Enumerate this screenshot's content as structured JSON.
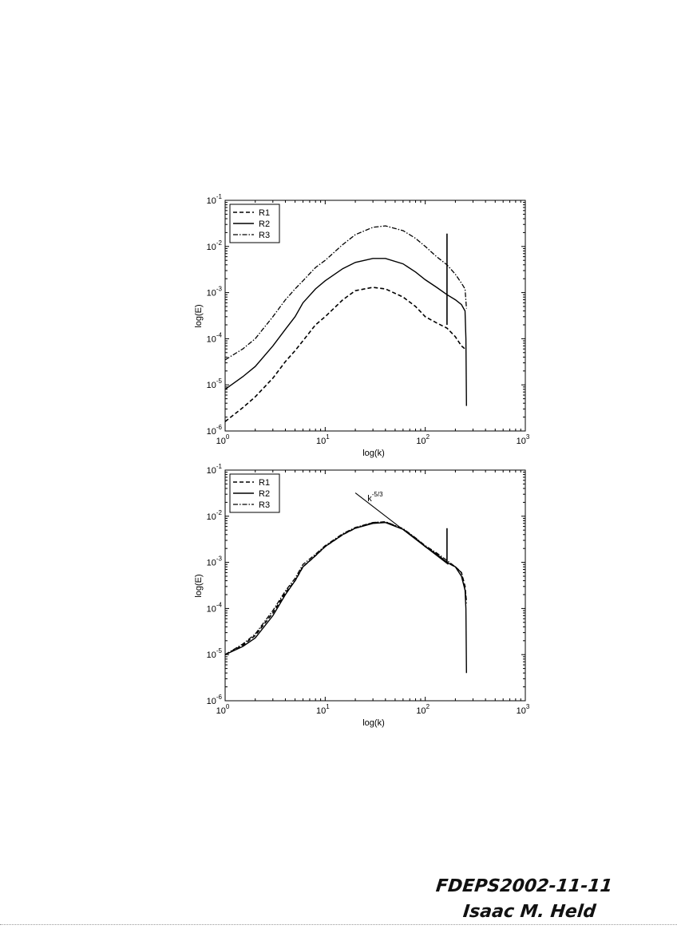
{
  "chart_data": [
    {
      "type": "line",
      "title": "",
      "xlabel": "log(k)",
      "ylabel": "log(E)",
      "xscale": "log",
      "yscale": "log",
      "xlim": [
        1,
        1000
      ],
      "ylim": [
        1e-06,
        0.1
      ],
      "xticks": [
        {
          "v": 1,
          "b": "10",
          "e": "0"
        },
        {
          "v": 10,
          "b": "10",
          "e": "1"
        },
        {
          "v": 100,
          "b": "10",
          "e": "2"
        },
        {
          "v": 1000,
          "b": "10",
          "e": "3"
        }
      ],
      "yticks": [
        {
          "v": 1e-06,
          "b": "10",
          "e": "-6"
        },
        {
          "v": 1e-05,
          "b": "10",
          "e": "-5"
        },
        {
          "v": 0.0001,
          "b": "10",
          "e": "-4"
        },
        {
          "v": 0.001,
          "b": "10",
          "e": "-3"
        },
        {
          "v": 0.01,
          "b": "10",
          "e": "-2"
        },
        {
          "v": 0.1,
          "b": "10",
          "e": "-1"
        }
      ],
      "legend_position": "top-left",
      "grid": false,
      "series": [
        {
          "name": "R1",
          "style": "dashed",
          "x": [
            1,
            1.5,
            2,
            3,
            4,
            5,
            6,
            8,
            10,
            15,
            20,
            30,
            40,
            60,
            80,
            100,
            130,
            165,
            200,
            230,
            250
          ],
          "y": [
            1.6e-06,
            3.2e-06,
            5.5e-06,
            1.4e-05,
            3.2e-05,
            5.5e-05,
            9e-05,
            0.0002,
            0.0003,
            0.0007,
            0.0011,
            0.0013,
            0.0012,
            0.0008,
            0.0005,
            0.0003,
            0.00022,
            0.00017,
            0.00011,
            7e-05,
            6e-05
          ]
        },
        {
          "name": "R2",
          "style": "solid",
          "x": [
            1,
            1.5,
            2,
            3,
            4,
            5,
            6,
            8,
            10,
            15,
            20,
            30,
            40,
            60,
            80,
            100,
            130,
            165,
            200,
            230,
            250,
            255,
            258
          ],
          "y": [
            8e-06,
            1.5e-05,
            2.5e-05,
            7e-05,
            0.00016,
            0.0003,
            0.0006,
            0.0012,
            0.0018,
            0.0033,
            0.0045,
            0.0055,
            0.0055,
            0.0042,
            0.0028,
            0.0019,
            0.0013,
            0.0009,
            0.0007,
            0.00055,
            0.0004,
            0.0001,
            3.5e-06
          ]
        },
        {
          "name": "R3",
          "style": "dashdot",
          "x": [
            1,
            1.5,
            2,
            3,
            4,
            5,
            6,
            8,
            10,
            15,
            20,
            30,
            40,
            60,
            80,
            100,
            130,
            165,
            200,
            230,
            250,
            258
          ],
          "y": [
            3.5e-05,
            6e-05,
            0.0001,
            0.0003,
            0.0007,
            0.0012,
            0.0018,
            0.0035,
            0.005,
            0.011,
            0.018,
            0.026,
            0.028,
            0.022,
            0.015,
            0.01,
            0.006,
            0.004,
            0.0025,
            0.0016,
            0.0012,
            0.00045
          ]
        },
        {
          "name": "",
          "style": "solid-spike",
          "x": [
            165,
            165
          ],
          "y": [
            0.019,
            0.0002
          ]
        }
      ],
      "annotations": []
    },
    {
      "type": "line",
      "title": "",
      "xlabel": "log(k)",
      "ylabel": "log(E)",
      "xscale": "log",
      "yscale": "log",
      "xlim": [
        1,
        1000
      ],
      "ylim": [
        1e-06,
        0.1
      ],
      "xticks": [
        {
          "v": 1,
          "b": "10",
          "e": "0"
        },
        {
          "v": 10,
          "b": "10",
          "e": "1"
        },
        {
          "v": 100,
          "b": "10",
          "e": "2"
        },
        {
          "v": 1000,
          "b": "10",
          "e": "3"
        }
      ],
      "yticks": [
        {
          "v": 1e-06,
          "b": "10",
          "e": "-6"
        },
        {
          "v": 1e-05,
          "b": "10",
          "e": "-5"
        },
        {
          "v": 0.0001,
          "b": "10",
          "e": "-4"
        },
        {
          "v": 0.001,
          "b": "10",
          "e": "-3"
        },
        {
          "v": 0.01,
          "b": "10",
          "e": "-2"
        },
        {
          "v": 0.1,
          "b": "10",
          "e": "-1"
        }
      ],
      "legend_position": "top-left",
      "grid": false,
      "series": [
        {
          "name": "R1",
          "style": "dashed",
          "x": [
            1,
            1.5,
            2,
            3,
            4,
            5,
            6,
            8,
            10,
            15,
            20,
            30,
            40,
            60,
            80,
            100,
            130,
            165,
            200,
            230,
            250,
            258
          ],
          "y": [
            1e-05,
            1.6e-05,
            2.6e-05,
            8e-05,
            0.00022,
            0.0004,
            0.0008,
            0.0014,
            0.0022,
            0.004,
            0.0055,
            0.0072,
            0.0075,
            0.0052,
            0.0033,
            0.0022,
            0.0015,
            0.001,
            0.0008,
            0.0006,
            0.0003,
            0.00013
          ]
        },
        {
          "name": "R2",
          "style": "solid",
          "x": [
            1,
            1.5,
            2,
            3,
            4,
            5,
            6,
            8,
            10,
            15,
            20,
            30,
            40,
            60,
            80,
            100,
            130,
            165,
            200,
            230,
            250,
            255,
            258
          ],
          "y": [
            1e-05,
            1.5e-05,
            2.3e-05,
            7e-05,
            0.0002,
            0.0004,
            0.0008,
            0.0014,
            0.0022,
            0.004,
            0.0055,
            0.007,
            0.0073,
            0.0052,
            0.0033,
            0.0022,
            0.0015,
            0.001,
            0.0008,
            0.0005,
            0.00025,
            0.0001,
            4e-06
          ]
        },
        {
          "name": "R3",
          "style": "dashdot",
          "x": [
            1,
            1.5,
            2,
            3,
            4,
            5,
            6,
            8,
            10,
            15,
            20,
            30,
            40,
            60,
            80,
            100,
            130,
            165,
            200,
            230,
            250,
            258
          ],
          "y": [
            1e-05,
            1.7e-05,
            2.8e-05,
            9e-05,
            0.00024,
            0.00045,
            0.0009,
            0.0015,
            0.0023,
            0.0042,
            0.0057,
            0.0073,
            0.0076,
            0.0054,
            0.0034,
            0.0023,
            0.0016,
            0.0011,
            0.0008,
            0.0006,
            0.00025,
            0.00015
          ]
        },
        {
          "name": "",
          "style": "solid-spike",
          "x": [
            165,
            165
          ],
          "y": [
            0.0055,
            0.001
          ]
        },
        {
          "name": "",
          "style": "reference",
          "x": [
            20,
            170
          ],
          "y": [
            0.032,
            0.0009
          ]
        }
      ],
      "annotations": [
        {
          "text_base": "k",
          "text_sup": "-5/3",
          "x": 22,
          "y": 0.025
        }
      ]
    }
  ],
  "handwriting": {
    "line1": "FDEPS2002-11-11",
    "line2": "Isaac M. Held"
  }
}
